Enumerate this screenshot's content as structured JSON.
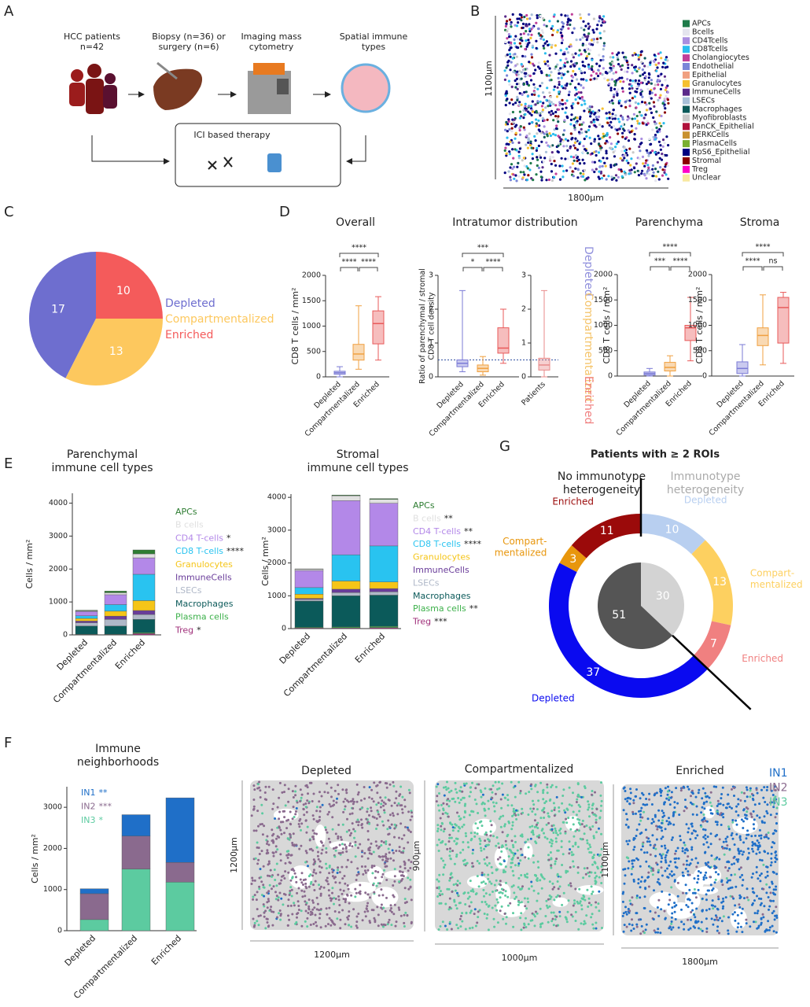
{
  "figure": {
    "panel_labels": [
      "A",
      "B",
      "C",
      "D",
      "E",
      "F",
      "G"
    ],
    "panel_a": {
      "steps": [
        "HCC patients\nn=42",
        "Biopsy (n=36) or\nsurgery (n=6)",
        "Imaging mass\ncytometry",
        "Spatial immune\ntypes"
      ],
      "therapy": "ICI based therapy"
    },
    "panel_b": {
      "legend": [
        {
          "name": "APCs",
          "color": "#1e7b4a"
        },
        {
          "name": "Bcells",
          "color": "#e4e4ee"
        },
        {
          "name": "CD4Tcells",
          "color": "#a98ee0"
        },
        {
          "name": "CD8Tcells",
          "color": "#2bbdee"
        },
        {
          "name": "Cholangiocytes",
          "color": "#c0409a"
        },
        {
          "name": "Endothelial",
          "color": "#7a86d8"
        },
        {
          "name": "Epithelial",
          "color": "#f0a080"
        },
        {
          "name": "Granulocytes",
          "color": "#f5c030"
        },
        {
          "name": "ImmuneCells",
          "color": "#5a2a8a"
        },
        {
          "name": "LSECs",
          "color": "#a8c0d8"
        },
        {
          "name": "Macrophages",
          "color": "#0b5a5a"
        },
        {
          "name": "Myofibroblasts",
          "color": "#c8c8c8"
        },
        {
          "name": "PanCK_Epithelial",
          "color": "#b0103a"
        },
        {
          "name": "pERKCells",
          "color": "#c89030"
        },
        {
          "name": "PlasmaCells",
          "color": "#7ab030"
        },
        {
          "name": "RpS6_Epithelial",
          "color": "#000080"
        },
        {
          "name": "Stromal",
          "color": "#8b0000"
        },
        {
          "name": "Treg",
          "color": "#ff00c8"
        },
        {
          "name": "Unclear",
          "color": "#f8e8a0"
        }
      ],
      "height_label": "1100µm",
      "width_label": "1800µm"
    },
    "panel_d_legend": [
      {
        "name": "Depleted",
        "color": "#8f8fdc"
      },
      {
        "name": "Compartmentalized",
        "color": "#f5c46a"
      },
      {
        "name": "Enriched",
        "color": "#f08080"
      }
    ],
    "panel_f_maps": [
      {
        "title": "Depleted",
        "height_label": "1200µm",
        "width_label": "1200µm"
      },
      {
        "title": "Compartmentalized",
        "height_label": "900µm",
        "width_label": "1000µm"
      },
      {
        "title": "Enriched",
        "height_label": "1100µm",
        "width_label": "1800µm"
      }
    ]
  },
  "chart_data": [
    {
      "type": "pie",
      "categories": [
        "Depleted",
        "Compartmentalized",
        "Enriched"
      ],
      "values": [
        17,
        13,
        10
      ],
      "colors": [
        "#6e6ecf",
        "#fdc85e",
        "#f45b5b"
      ]
    },
    {
      "type": "box",
      "title": "Overall",
      "ylabel": "CD8 T cells / mm²",
      "categories": [
        "Depleted",
        "Compartmentalized",
        "Enriched"
      ],
      "boxes": [
        {
          "min": 0,
          "q1": 50,
          "median": 80,
          "q3": 110,
          "max": 200
        },
        {
          "min": 150,
          "q1": 330,
          "median": 450,
          "q3": 640,
          "max": 1400
        },
        {
          "min": 330,
          "q1": 650,
          "median": 1050,
          "q3": 1300,
          "max": 1580
        }
      ],
      "colors": [
        "#7b7bd6",
        "#f0a040",
        "#e85a5a"
      ],
      "ylim": [
        0,
        2000
      ],
      "yticks": [
        0,
        500,
        1000,
        1500,
        2000
      ],
      "significance": [
        "****",
        "****",
        "****"
      ]
    },
    {
      "type": "box",
      "title": "Intratumor distribution",
      "ylabel": "Ratio of parenchymal / stromal\nCD8 T cell density",
      "categories": [
        "Depleted",
        "Compartmentalized",
        "Enriched"
      ],
      "boxes": [
        {
          "min": 0.15,
          "q1": 0.3,
          "median": 0.4,
          "q3": 0.5,
          "max": 2.55
        },
        {
          "min": 0.05,
          "q1": 0.15,
          "median": 0.25,
          "q3": 0.35,
          "max": 0.6
        },
        {
          "min": 0.4,
          "q1": 0.7,
          "median": 0.85,
          "q3": 1.45,
          "max": 2.0
        }
      ],
      "colors": [
        "#7b7bd6",
        "#f0a040",
        "#e85a5a"
      ],
      "ylim": [
        0,
        3
      ],
      "yticks": [
        0,
        1,
        2,
        3
      ],
      "reference_line": 0.5,
      "significance": [
        "*",
        "****",
        "***"
      ]
    },
    {
      "type": "box",
      "categories": [
        "Patients"
      ],
      "boxes": [
        {
          "min": 0,
          "q1": 0.2,
          "median": 0.35,
          "q3": 0.55,
          "max": 2.55
        }
      ],
      "colors": [
        "#e88a8a"
      ],
      "ylim": [
        0,
        3
      ],
      "yticks": [
        0,
        1,
        2,
        3
      ]
    },
    {
      "type": "box",
      "title": "Parenchyma",
      "ylabel": "CD8 T cells / mm²",
      "categories": [
        "Depleted",
        "Compartmentalized",
        "Enriched"
      ],
      "boxes": [
        {
          "min": 0,
          "q1": 20,
          "median": 50,
          "q3": 80,
          "max": 150
        },
        {
          "min": 0,
          "q1": 100,
          "median": 170,
          "q3": 270,
          "max": 400
        },
        {
          "min": 300,
          "q1": 700,
          "median": 950,
          "q3": 1000,
          "max": 1550
        }
      ],
      "colors": [
        "#7b7bd6",
        "#f0a040",
        "#e85a5a"
      ],
      "ylim": [
        0,
        2000
      ],
      "yticks": [
        0,
        500,
        1000,
        1500,
        2000
      ],
      "significance": [
        "***",
        "****",
        "****"
      ]
    },
    {
      "type": "box",
      "title": "Stroma",
      "ylabel": "CD8 T cells / mm²",
      "categories": [
        "Depleted",
        "Compartmentalized",
        "Enriched"
      ],
      "boxes": [
        {
          "min": 0,
          "q1": 50,
          "median": 150,
          "q3": 280,
          "max": 620
        },
        {
          "min": 220,
          "q1": 600,
          "median": 800,
          "q3": 950,
          "max": 1600
        },
        {
          "min": 250,
          "q1": 650,
          "median": 1350,
          "q3": 1550,
          "max": 1650
        }
      ],
      "colors": [
        "#7b7bd6",
        "#f0a040",
        "#e85a5a"
      ],
      "ylim": [
        0,
        2000
      ],
      "yticks": [
        0,
        500,
        1000,
        1500,
        2000
      ],
      "significance": [
        "****",
        "ns",
        "****"
      ]
    },
    {
      "type": "stacked_bar",
      "title": "Parenchymal\nimmune cell types",
      "ylabel": "Cells / mm²",
      "categories": [
        "Depleted",
        "Compartmentalized",
        "Enriched"
      ],
      "series": [
        {
          "name": "APCs",
          "color": "#2e7d32",
          "values": [
            20,
            50,
            120
          ]
        },
        {
          "name": "B cells",
          "color": "#e0e0e0",
          "values": [
            20,
            60,
            120
          ]
        },
        {
          "name": "CD4 T-cells",
          "stars": "*",
          "color": "#b388e8",
          "values": [
            130,
            300,
            500
          ]
        },
        {
          "name": "CD8 T-cells",
          "stars": "****",
          "color": "#29c3f0",
          "values": [
            80,
            200,
            800
          ]
        },
        {
          "name": "Granulocytes",
          "color": "#f5c518",
          "values": [
            80,
            150,
            300
          ]
        },
        {
          "name": "ImmuneCells",
          "color": "#6a3d9a",
          "values": [
            50,
            100,
            120
          ]
        },
        {
          "name": "LSECs",
          "color": "#b0b8c8",
          "values": [
            100,
            200,
            150
          ]
        },
        {
          "name": "Macrophages",
          "color": "#0b5a5a",
          "values": [
            250,
            250,
            400
          ]
        },
        {
          "name": "Plasma cells",
          "color": "#3cb04a",
          "values": [
            10,
            10,
            30
          ]
        },
        {
          "name": "Treg",
          "stars": "*",
          "color": "#a0307a",
          "values": [
            10,
            10,
            40
          ]
        }
      ],
      "ylim": [
        0,
        4300
      ],
      "yticks": [
        0,
        1000,
        2000,
        3000,
        4000
      ]
    },
    {
      "type": "stacked_bar",
      "title": "Stromal\nimmune cell types",
      "ylabel": "Cells / mm²",
      "categories": [
        "Depleted",
        "Compartmentalized",
        "Enriched"
      ],
      "series": [
        {
          "name": "APCs",
          "color": "#2e7d32",
          "values": [
            10,
            20,
            20
          ]
        },
        {
          "name": "B cells",
          "stars": "**",
          "color": "#e0e0e0",
          "values": [
            40,
            150,
            120
          ]
        },
        {
          "name": "CD4 T-cells",
          "stars": "**",
          "color": "#b388e8",
          "values": [
            520,
            1650,
            1300
          ]
        },
        {
          "name": "CD8 T-cells",
          "stars": "****",
          "color": "#29c3f0",
          "values": [
            200,
            800,
            1100
          ]
        },
        {
          "name": "Granulocytes",
          "color": "#f5c518",
          "values": [
            130,
            250,
            200
          ]
        },
        {
          "name": "ImmuneCells",
          "color": "#6a3d9a",
          "values": [
            30,
            100,
            100
          ]
        },
        {
          "name": "LSECs",
          "color": "#b0b8c8",
          "values": [
            50,
            100,
            100
          ]
        },
        {
          "name": "Macrophages",
          "color": "#0b5a5a",
          "values": [
            800,
            950,
            950
          ]
        },
        {
          "name": "Plasma cells",
          "stars": "**",
          "color": "#3cb04a",
          "values": [
            20,
            30,
            40
          ]
        },
        {
          "name": "Treg",
          "stars": "***",
          "color": "#a0307a",
          "values": [
            20,
            20,
            30
          ]
        }
      ],
      "ylim": [
        0,
        4100
      ],
      "yticks": [
        0,
        1000,
        2000,
        3000,
        4000
      ]
    },
    {
      "type": "stacked_bar",
      "title": "Immune\nneighborhoods",
      "ylabel": "Cells / mm²",
      "categories": [
        "Depleted",
        "Compartmentalized",
        "Enriched"
      ],
      "series": [
        {
          "name": "IN1",
          "stars": "**",
          "color": "#1f6fc8",
          "values": [
            120,
            520,
            1570
          ]
        },
        {
          "name": "IN2",
          "stars": "***",
          "color": "#8a6a8e",
          "values": [
            630,
            800,
            480
          ]
        },
        {
          "name": "IN3",
          "stars": "*",
          "color": "#5ccba0",
          "values": [
            270,
            1500,
            1180
          ]
        }
      ],
      "ylim": [
        0,
        3500
      ],
      "yticks": [
        0,
        1000,
        2000,
        3000
      ]
    },
    {
      "type": "donut",
      "title": "Patients with ≥ 2 ROIs",
      "groups": [
        {
          "name": "No immunotype\nheterogeneity",
          "total": 51,
          "total_color": "#555555",
          "segments": [
            {
              "name": "Depleted",
              "value": 37,
              "color": "#0a0af0"
            },
            {
              "name": "Compart-\nmentalized",
              "value": 3,
              "color": "#e8960c"
            },
            {
              "name": "Enriched",
              "value": 11,
              "color": "#9b0a0a"
            }
          ]
        },
        {
          "name": "Immunotype\nheterogeneity",
          "total": 30,
          "total_color": "#d3d3d3",
          "segments": [
            {
              "name": "Depleted",
              "value": 10,
              "color": "#b8cff0"
            },
            {
              "name": "Compart-\nmentalized",
              "value": 13,
              "color": "#fdd060"
            },
            {
              "name": "Enriched",
              "value": 7,
              "color": "#f08080"
            }
          ]
        }
      ]
    }
  ]
}
